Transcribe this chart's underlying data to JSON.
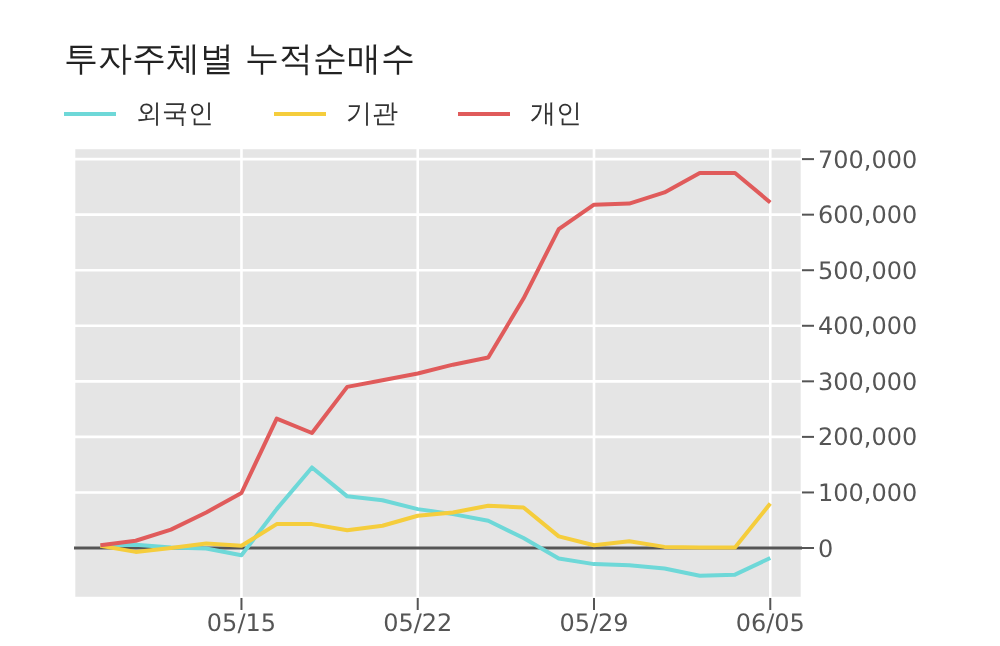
{
  "chart_data": {
    "type": "line",
    "title": "투자주체별 누적순매수",
    "categories": [
      null,
      null,
      null,
      null,
      "05/15",
      null,
      null,
      null,
      null,
      "05/22",
      null,
      null,
      null,
      null,
      "05/29",
      null,
      null,
      null,
      null,
      "06/05"
    ],
    "series": [
      {
        "name": "외국인",
        "color": "#6ed8d8",
        "values": [
          4000,
          6000,
          1000,
          -1000,
          -13000,
          70000,
          145000,
          93000,
          86000,
          70000,
          61000,
          49000,
          18000,
          -19000,
          -29000,
          -31000,
          -37000,
          -50000,
          -48000,
          -18000
        ]
      },
      {
        "name": "기관",
        "color": "#f5cd3c",
        "values": [
          4000,
          -7000,
          0,
          8000,
          4000,
          43000,
          43000,
          32000,
          40000,
          58000,
          64000,
          76000,
          73000,
          21000,
          5000,
          12000,
          2000,
          1000,
          1000,
          80000
        ]
      },
      {
        "name": "개인",
        "color": "#e05b5b",
        "values": [
          5000,
          13000,
          33000,
          64000,
          99000,
          233000,
          207000,
          290000,
          302000,
          314000,
          330000,
          343000,
          449000,
          574000,
          618000,
          620000,
          640000,
          675000,
          675000,
          622000
        ]
      }
    ],
    "ylim": [
      -90000,
      720000
    ],
    "yticks": [
      0,
      {
        "value": 100000,
        "label": "100,000"
      },
      {
        "value": 200000,
        "label": "200,000"
      },
      {
        "value": 300000,
        "label": "300,000"
      },
      {
        "value": 400000,
        "label": "400,000"
      },
      {
        "value": 500000,
        "label": "500,000"
      },
      {
        "value": 600000,
        "label": "600,000"
      },
      {
        "value": 700000,
        "label": "700,000"
      }
    ],
    "ref_lines": [
      {
        "axis": "y",
        "value": 0,
        "color": "#555555"
      }
    ],
    "grid": true,
    "legend": "top left",
    "marker": "none",
    "line_style": "solid"
  }
}
